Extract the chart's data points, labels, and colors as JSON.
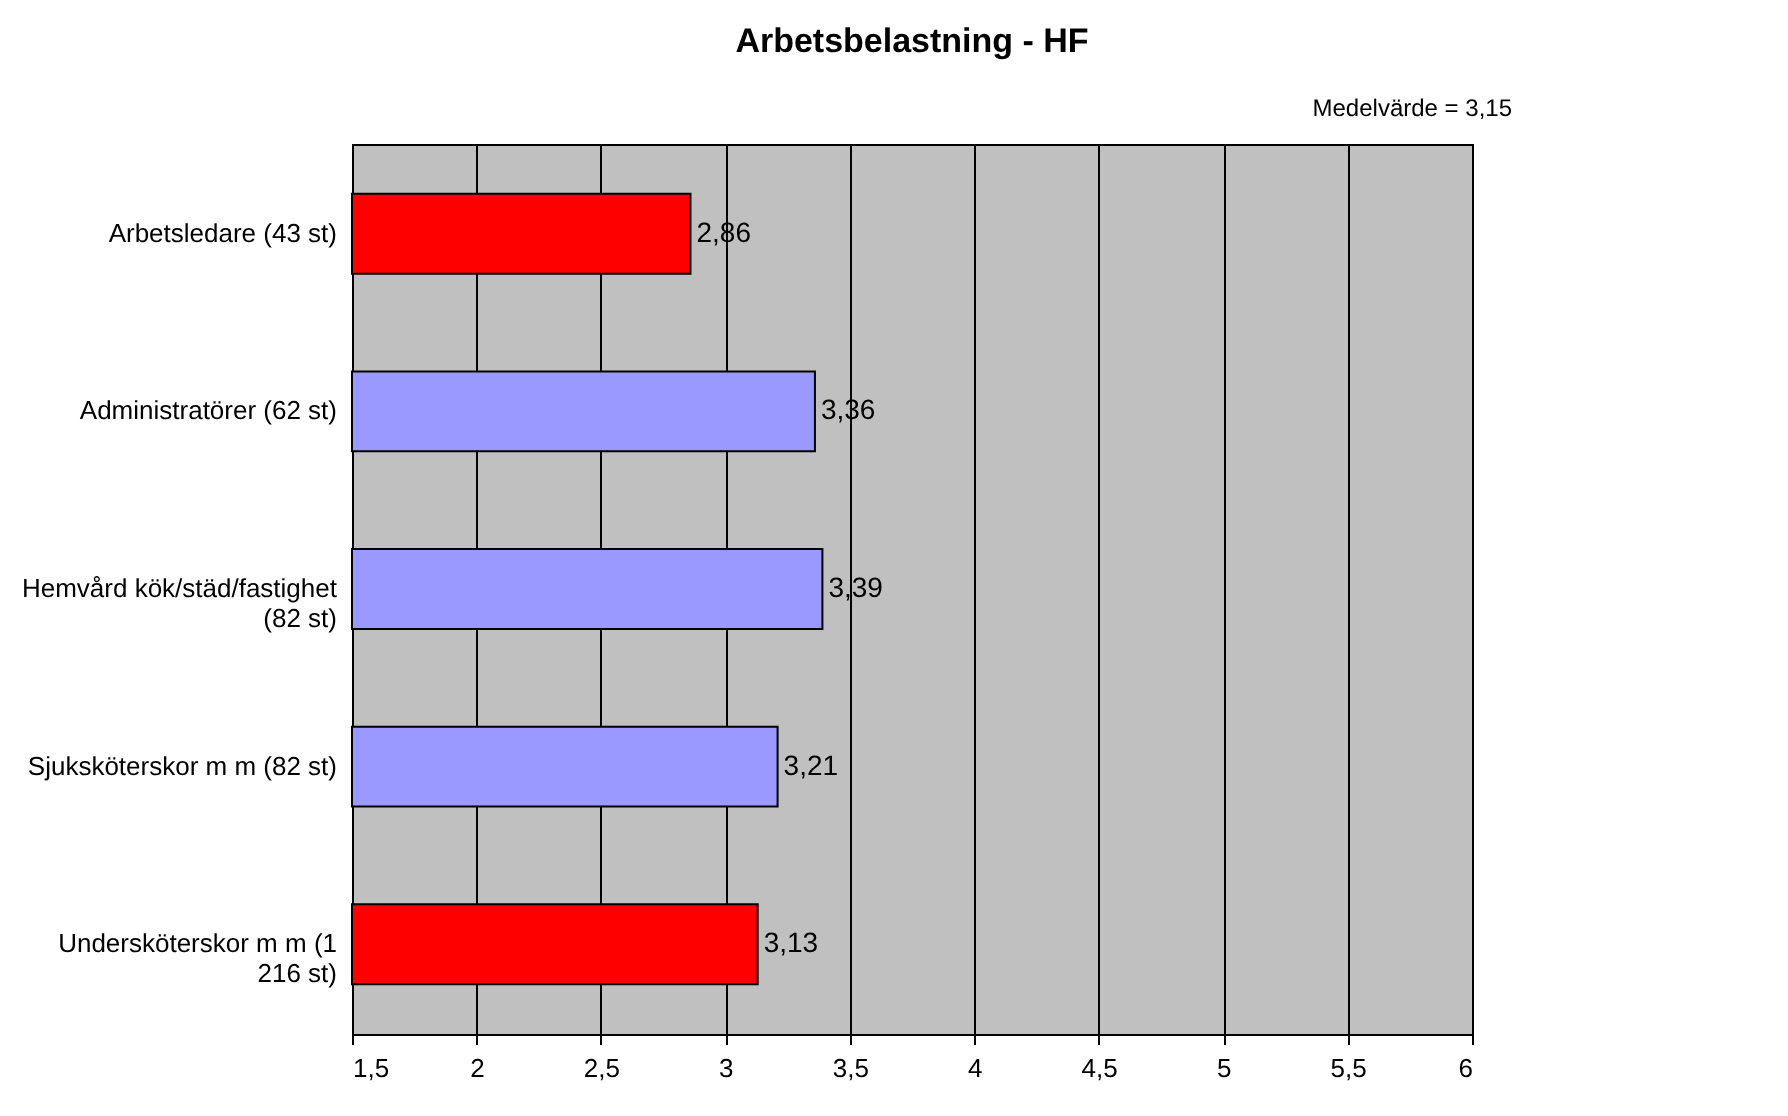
{
  "chart_data": {
    "type": "bar",
    "orientation": "horizontal",
    "title": "Arbetsbelastning - HF",
    "categories": [
      "Arbetsledare (43 st)",
      "Administratörer (62 st)",
      "Hemvård kök/städ/fastighet\n(82 st)",
      "Sjuksköterskor m m (82 st)",
      "Undersköterskor m m (1\n216 st)"
    ],
    "values": [
      2.86,
      3.36,
      3.39,
      3.21,
      3.13
    ],
    "colors": [
      "#ff0000",
      "#9999ff",
      "#9999ff",
      "#9999ff",
      "#ff0000"
    ],
    "value_labels": [
      "2,86",
      "3,36",
      "3,39",
      "3,21",
      "3,13"
    ],
    "xlim": [
      1.5,
      6
    ],
    "xticks": [
      {
        "value": 1.5,
        "label": "1,5"
      },
      2,
      {
        "value": 2.5,
        "label": "2,5"
      },
      3,
      {
        "value": 3.5,
        "label": "3,5"
      },
      4,
      {
        "value": 4.5,
        "label": "4,5"
      },
      5,
      {
        "value": 5.5,
        "label": "5,5"
      },
      6
    ],
    "grid": "x",
    "annotations": [
      "Medelvärde = 3,15"
    ]
  }
}
